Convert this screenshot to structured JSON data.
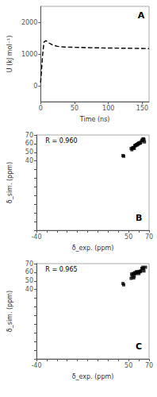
{
  "chart_data": [
    {
      "type": "line",
      "xlabel": "Time (ns)",
      "ylabel": "U (kJ mol⁻¹)",
      "annotations": [
        "A"
      ],
      "x": [
        0,
        1,
        3,
        5,
        8,
        12,
        18,
        25,
        35,
        50,
        70,
        90,
        110,
        130,
        150,
        160
      ],
      "values": [
        100,
        400,
        1000,
        1380,
        1420,
        1350,
        1280,
        1240,
        1220,
        1210,
        1200,
        1190,
        1185,
        1180,
        1175,
        1170
      ],
      "xlim": [
        0,
        160
      ],
      "ylim": [
        -500,
        2500
      ],
      "xticks": [
        0,
        50,
        100,
        150
      ],
      "yticks": [
        0,
        1000,
        2000
      ],
      "color": "#000000",
      "line_style": "dashed",
      "grid": false
    },
    {
      "type": "scatter",
      "xlabel": "δ_exp. (ppm)",
      "ylabel": "δ_sim. (ppm)",
      "annotations": [
        "R = 0.960",
        "B"
      ],
      "x": [
        44.5,
        45.2,
        52.5,
        53.2,
        54.0,
        54.5,
        55.0,
        55.5,
        56.0,
        56.5,
        57.0,
        57.5,
        58.0,
        58.5,
        59.0,
        59.5,
        60.0,
        60.5,
        61.0,
        61.5,
        62.0,
        63.0,
        63.5,
        64.0,
        64.5,
        65.0,
        65.5
      ],
      "values": [
        46.2,
        45.5,
        54.5,
        53.0,
        55.0,
        55.5,
        55.2,
        54.5,
        57.5,
        58.0,
        57.8,
        58.5,
        59.0,
        58.5,
        60.0,
        59.5,
        60.5,
        61.0,
        60.5,
        60.8,
        62.0,
        64.0,
        63.5,
        65.2,
        65.5,
        64.8,
        62.0
      ],
      "xlim": [
        -40,
        70
      ],
      "ylim": [
        -40,
        70
      ],
      "xticks": [
        -40,
        {
          "value": -30,
          "label": null
        },
        {
          "value": -20,
          "label": null
        },
        {
          "value": -10,
          "label": null
        },
        {
          "value": 0,
          "label": null
        },
        {
          "value": 10,
          "label": null
        },
        {
          "value": 20,
          "label": null
        },
        {
          "value": 30,
          "label": null
        },
        {
          "value": 40,
          "label": null
        },
        50,
        {
          "value": 60,
          "label": null
        },
        70
      ],
      "yticks": [
        {
          "value": -40,
          "label": null
        },
        {
          "value": -30,
          "label": null
        },
        {
          "value": -20,
          "label": null
        },
        {
          "value": -10,
          "label": null
        },
        {
          "value": 0,
          "label": null
        },
        {
          "value": 10,
          "label": null
        },
        {
          "value": 20,
          "label": null
        },
        {
          "value": 30,
          "label": null
        },
        40,
        50,
        60,
        70
      ],
      "color": "#000000",
      "marker": "square",
      "grid": false
    },
    {
      "type": "scatter",
      "xlabel": "δ_exp. (ppm)",
      "ylabel": "δ_sim. (ppm)",
      "annotations": [
        "R = 0.965",
        "C"
      ],
      "x": [
        44.5,
        45.2,
        52.5,
        53.0,
        53.5,
        54.5,
        55.0,
        55.5,
        56.0,
        56.5,
        57.0,
        57.5,
        58.0,
        58.5,
        59.0,
        59.5,
        60.0,
        60.5,
        61.0,
        61.5,
        62.0,
        63.0,
        63.5,
        64.0,
        64.5,
        65.0,
        66.5
      ],
      "values": [
        47.0,
        45.5,
        53.0,
        58.0,
        55.5,
        58.5,
        53.5,
        55.5,
        59.5,
        59.0,
        58.5,
        60.5,
        60.0,
        60.2,
        59.8,
        60.5,
        58.5,
        60.8,
        60.5,
        61.2,
        61.5,
        64.5,
        64.0,
        65.8,
        64.5,
        61.5,
        65.8
      ],
      "xlim": [
        -40,
        70
      ],
      "ylim": [
        -40,
        70
      ],
      "xticks": [
        -40,
        {
          "value": -30,
          "label": null
        },
        {
          "value": -20,
          "label": null
        },
        {
          "value": -10,
          "label": null
        },
        {
          "value": 0,
          "label": null
        },
        {
          "value": 10,
          "label": null
        },
        {
          "value": 20,
          "label": null
        },
        {
          "value": 30,
          "label": null
        },
        {
          "value": 40,
          "label": null
        },
        50,
        {
          "value": 60,
          "label": null
        },
        70
      ],
      "yticks": [
        {
          "value": -40,
          "label": null
        },
        {
          "value": -30,
          "label": null
        },
        {
          "value": -20,
          "label": null
        },
        {
          "value": -10,
          "label": null
        },
        {
          "value": 0,
          "label": null
        },
        {
          "value": 10,
          "label": null
        },
        {
          "value": 20,
          "label": null
        },
        {
          "value": 30,
          "label": null
        },
        40,
        50,
        60,
        70
      ],
      "color": "#000000",
      "marker": "square",
      "grid": false
    }
  ]
}
